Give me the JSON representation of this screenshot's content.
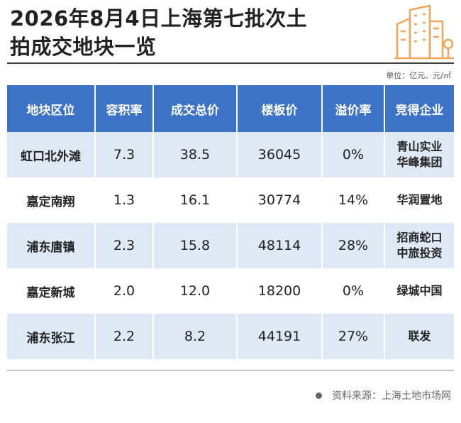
{
  "title": {
    "line1": "2026年8月4日上海第七批次土",
    "line2": "拍成交地块一览"
  },
  "icon": "building-icon",
  "colors": {
    "header": "#3c73c6",
    "row_alt": "#dfe8f5",
    "icon": "#f0a65a"
  },
  "unit_note": "单位：亿元、元/㎡",
  "table": {
    "headers": [
      "地块区位",
      "容积率",
      "成交总价",
      "楼板价",
      "溢价率",
      "竞得企业"
    ],
    "rows": [
      {
        "location": "虹口北外滩",
        "plot_ratio": "7.3",
        "total_price": "38.5",
        "floor_price": "36045",
        "premium": "0%",
        "company_1": "青山实业",
        "company_2": "华峰集团"
      },
      {
        "location": "嘉定南翔",
        "plot_ratio": "1.3",
        "total_price": "16.1",
        "floor_price": "30774",
        "premium": "14%",
        "company_1": "华润置地",
        "company_2": ""
      },
      {
        "location": "浦东唐镇",
        "plot_ratio": "2.3",
        "total_price": "15.8",
        "floor_price": "48114",
        "premium": "28%",
        "company_1": "招商蛇口",
        "company_2": "中旅投资"
      },
      {
        "location": "嘉定新城",
        "plot_ratio": "2.0",
        "total_price": "12.0",
        "floor_price": "18200",
        "premium": "0%",
        "company_1": "绿城中国",
        "company_2": ""
      },
      {
        "location": "浦东张江",
        "plot_ratio": "2.2",
        "total_price": "8.2",
        "floor_price": "44191",
        "premium": "27%",
        "company_1": "联发",
        "company_2": ""
      }
    ]
  },
  "source": "资料来源：上海土地市场网"
}
